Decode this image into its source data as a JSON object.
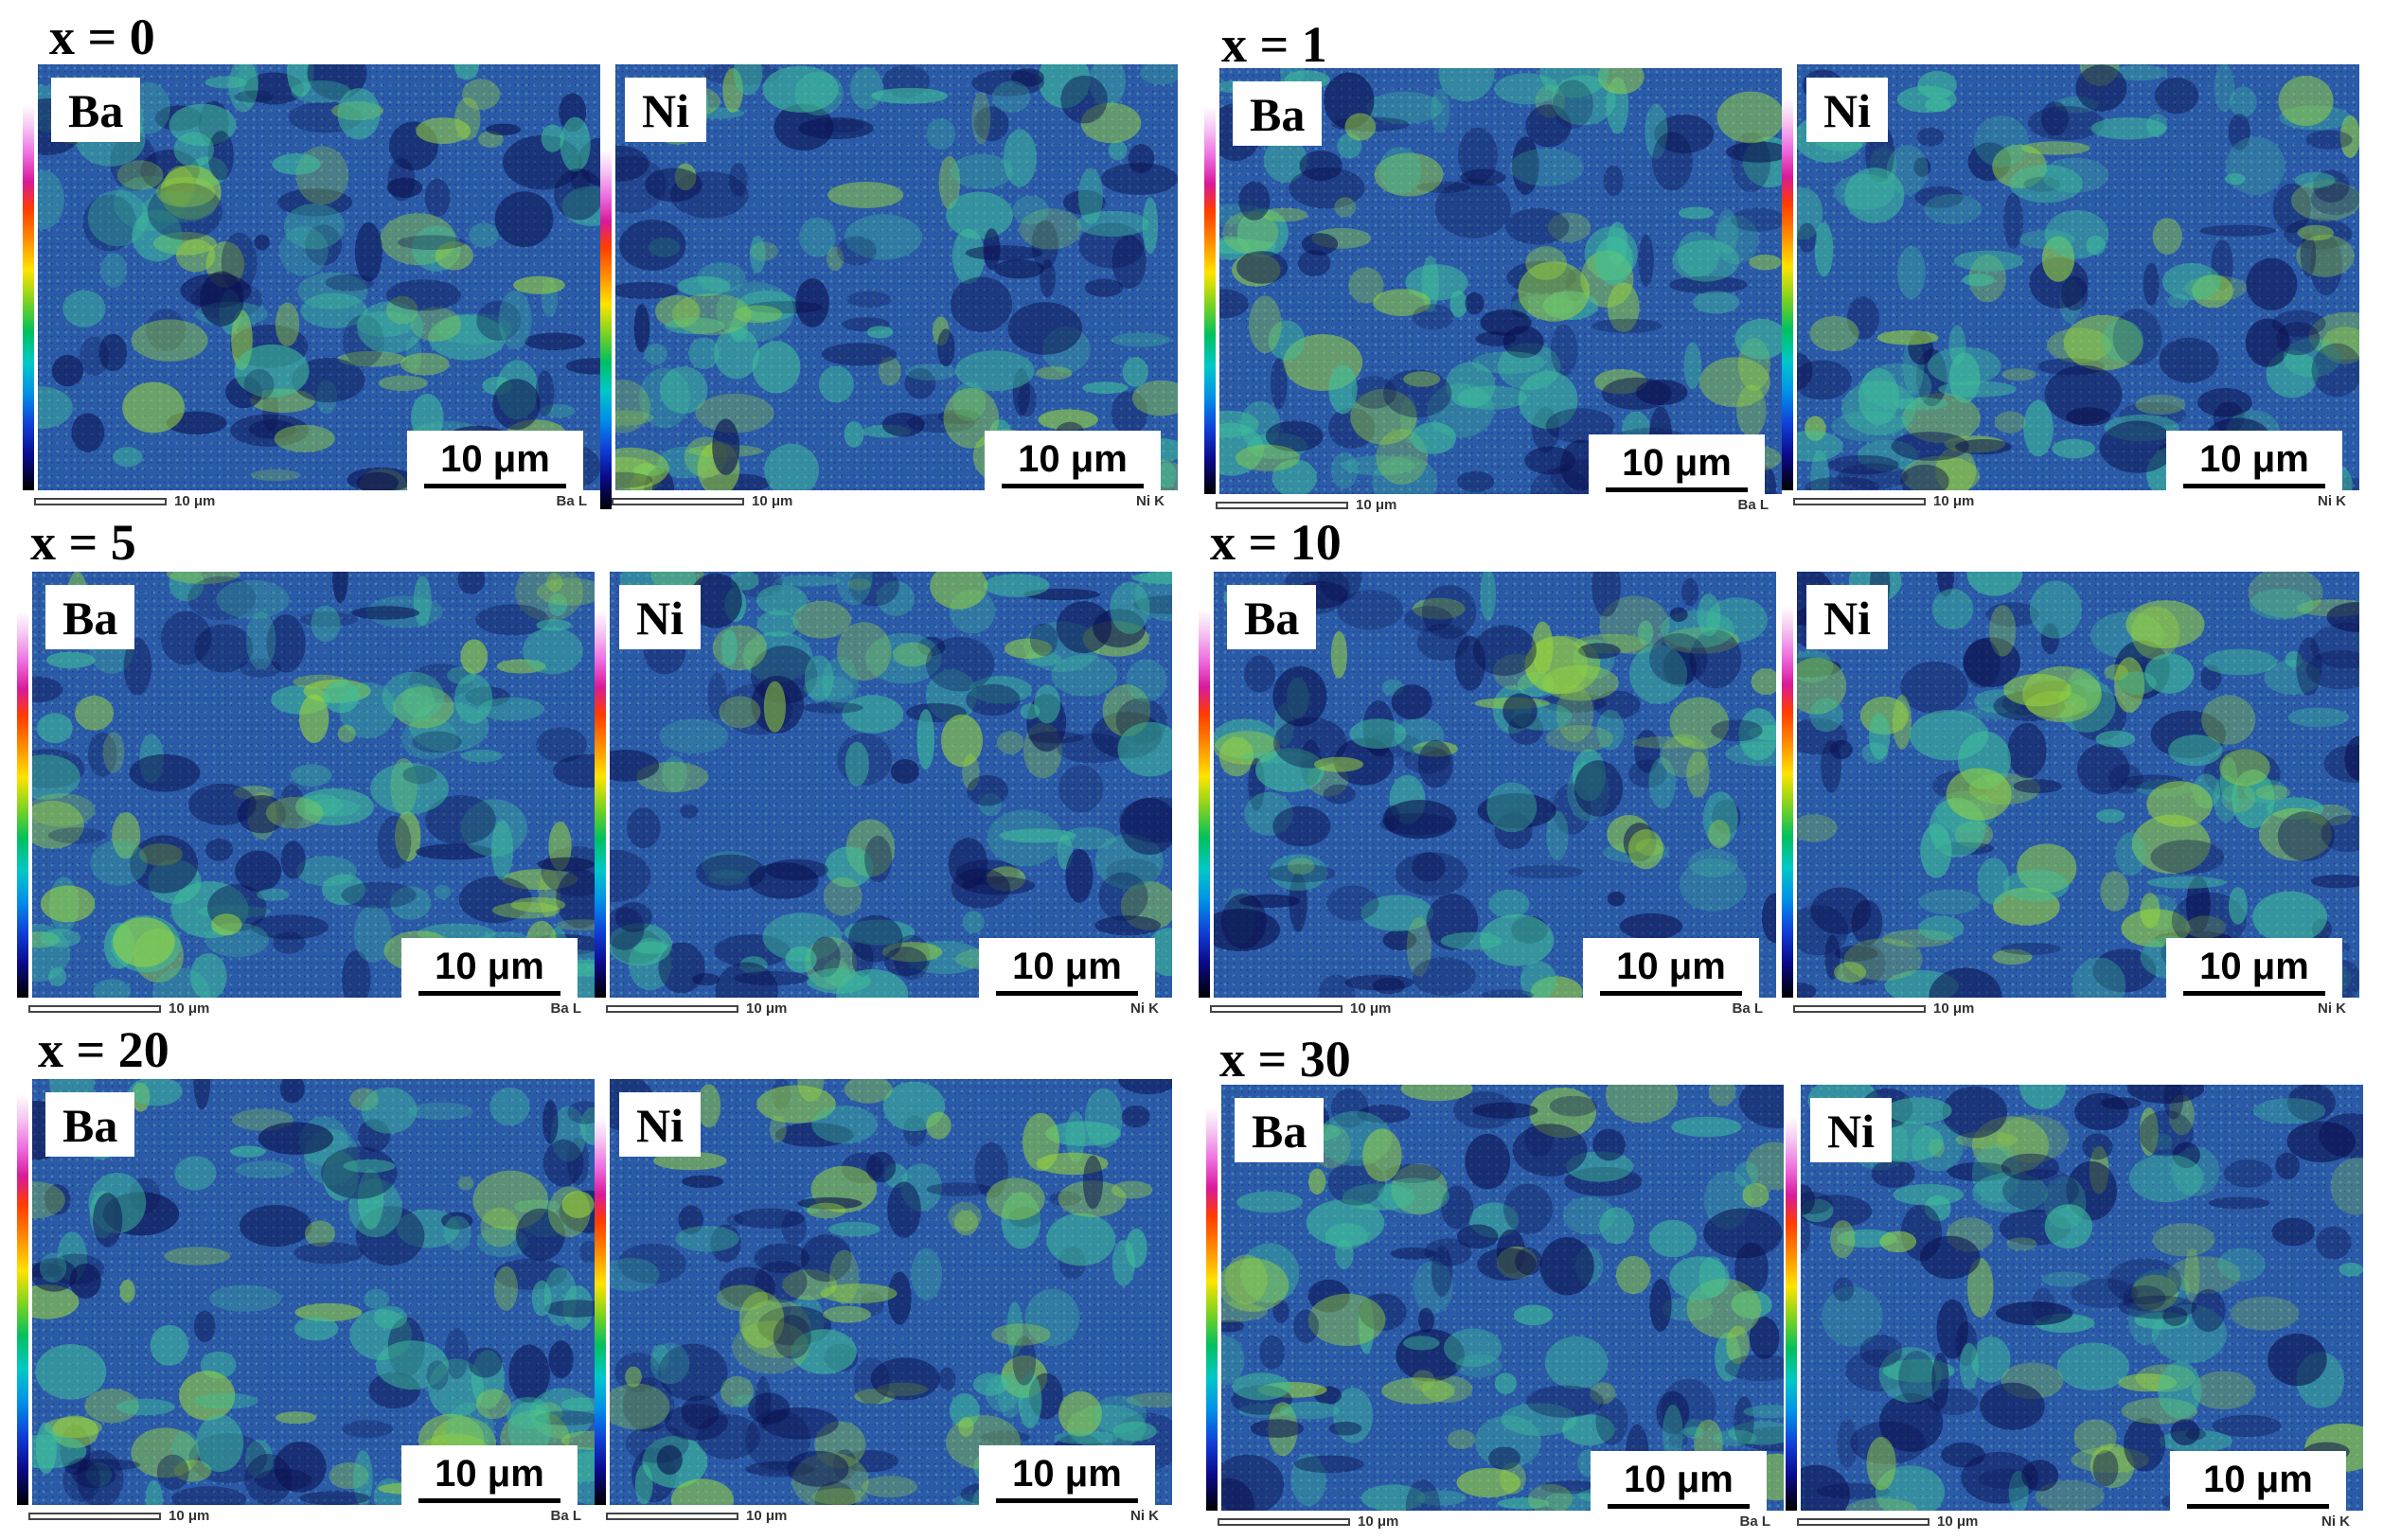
{
  "colors": {
    "map_dark": "#0a0f4e",
    "map_mid": "#2b5aa8",
    "map_bright": "#3fc09a",
    "map_hot": "#9ad63c"
  },
  "groups": [
    {
      "label": "x = 0",
      "panels": [
        {
          "element": "Ba",
          "scale_text": "10 μm",
          "footer_scale": "10 μm",
          "footer_signal": "Ba L"
        },
        {
          "element": "Ni",
          "scale_text": "10 μm",
          "footer_scale": "10 μm",
          "footer_signal": "Ni K"
        }
      ]
    },
    {
      "label": "x = 1",
      "panels": [
        {
          "element": "Ba",
          "scale_text": "10 μm",
          "footer_scale": "10 μm",
          "footer_signal": "Ba L"
        },
        {
          "element": "Ni",
          "scale_text": "10 μm",
          "footer_scale": "10 μm",
          "footer_signal": "Ni K"
        }
      ]
    },
    {
      "label": "x = 5",
      "panels": [
        {
          "element": "Ba",
          "scale_text": "10 μm",
          "footer_scale": "10 μm",
          "footer_signal": "Ba L"
        },
        {
          "element": "Ni",
          "scale_text": "10 μm",
          "footer_scale": "10 μm",
          "footer_signal": "Ni K"
        }
      ]
    },
    {
      "label": "x = 10",
      "panels": [
        {
          "element": "Ba",
          "scale_text": "10 μm",
          "footer_scale": "10 μm",
          "footer_signal": "Ba L"
        },
        {
          "element": "Ni",
          "scale_text": "10 μm",
          "footer_scale": "10 μm",
          "footer_signal": "Ni K"
        }
      ]
    },
    {
      "label": "x = 20",
      "panels": [
        {
          "element": "Ba",
          "scale_text": "10 μm",
          "footer_scale": "10 μm",
          "footer_signal": "Ba L"
        },
        {
          "element": "Ni",
          "scale_text": "10 μm",
          "footer_scale": "10 μm",
          "footer_signal": "Ni K"
        }
      ]
    },
    {
      "label": "x = 30",
      "panels": [
        {
          "element": "Ba",
          "scale_text": "10 μm",
          "footer_scale": "10 μm",
          "footer_signal": "Ba L"
        },
        {
          "element": "Ni",
          "scale_text": "10 μm",
          "footer_scale": "10 μm",
          "footer_signal": "Ni K"
        }
      ]
    }
  ]
}
